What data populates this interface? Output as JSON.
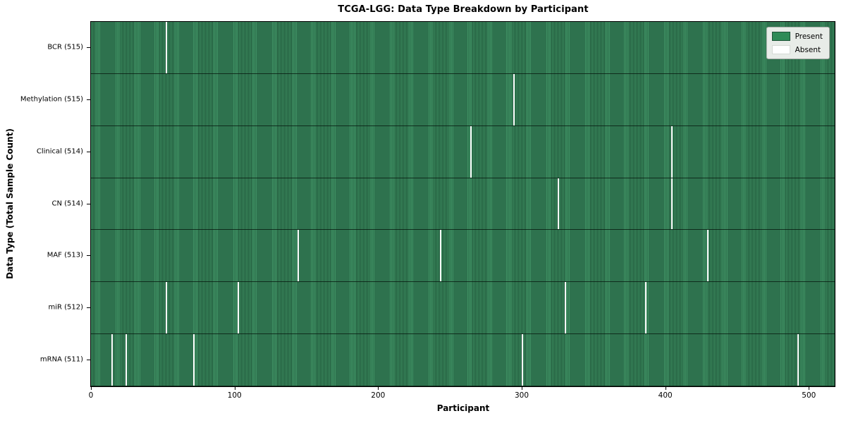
{
  "title": "TCGA-LGG: Data Type Breakdown by Participant",
  "legend": {
    "present_label": "Present",
    "absent_label": "Absent",
    "position": "upper right"
  },
  "colors": {
    "present": "#2e8b57",
    "present_stripe_light": "#3f9163",
    "present_stripe_dark": "#1e5438",
    "absent": "#fcfcfc",
    "legend_bg": "#e8ece8",
    "row_divider": "rgba(5,20,12,0.75)"
  },
  "chart_data": {
    "type": "heatmap",
    "title": "TCGA-LGG: Data Type Breakdown by Participant",
    "xlabel": "Participant",
    "ylabel": "Data Type (Total Sample Count)",
    "legend_entries": [
      "Present",
      "Absent"
    ],
    "legend_position": "upper right",
    "grid": false,
    "x_ticks": [
      0,
      100,
      200,
      300,
      400,
      500
    ],
    "x_axis_max": 518,
    "n_participants": 516,
    "cell_values": "1 = present (green), 0 = absent (white)",
    "rows": [
      {
        "label": "BCR (515)",
        "data_type": "BCR",
        "present_count": 515,
        "absent_participants": [
          52
        ]
      },
      {
        "label": "Methylation (515)",
        "data_type": "Methylation",
        "present_count": 515,
        "absent_participants": [
          294
        ]
      },
      {
        "label": "Clinical (514)",
        "data_type": "Clinical",
        "present_count": 514,
        "absent_participants": [
          264,
          404
        ]
      },
      {
        "label": "CN (514)",
        "data_type": "CN",
        "present_count": 514,
        "absent_participants": [
          325,
          404
        ]
      },
      {
        "label": "MAF (513)",
        "data_type": "MAF",
        "present_count": 513,
        "absent_participants": [
          144,
          243,
          429
        ]
      },
      {
        "label": "miR (512)",
        "data_type": "miR",
        "present_count": 512,
        "absent_participants": [
          52,
          102,
          330,
          386
        ]
      },
      {
        "label": "mRNA (511)",
        "data_type": "mRNA",
        "present_count": 511,
        "absent_participants": [
          14,
          24,
          71,
          300,
          492
        ]
      }
    ]
  }
}
